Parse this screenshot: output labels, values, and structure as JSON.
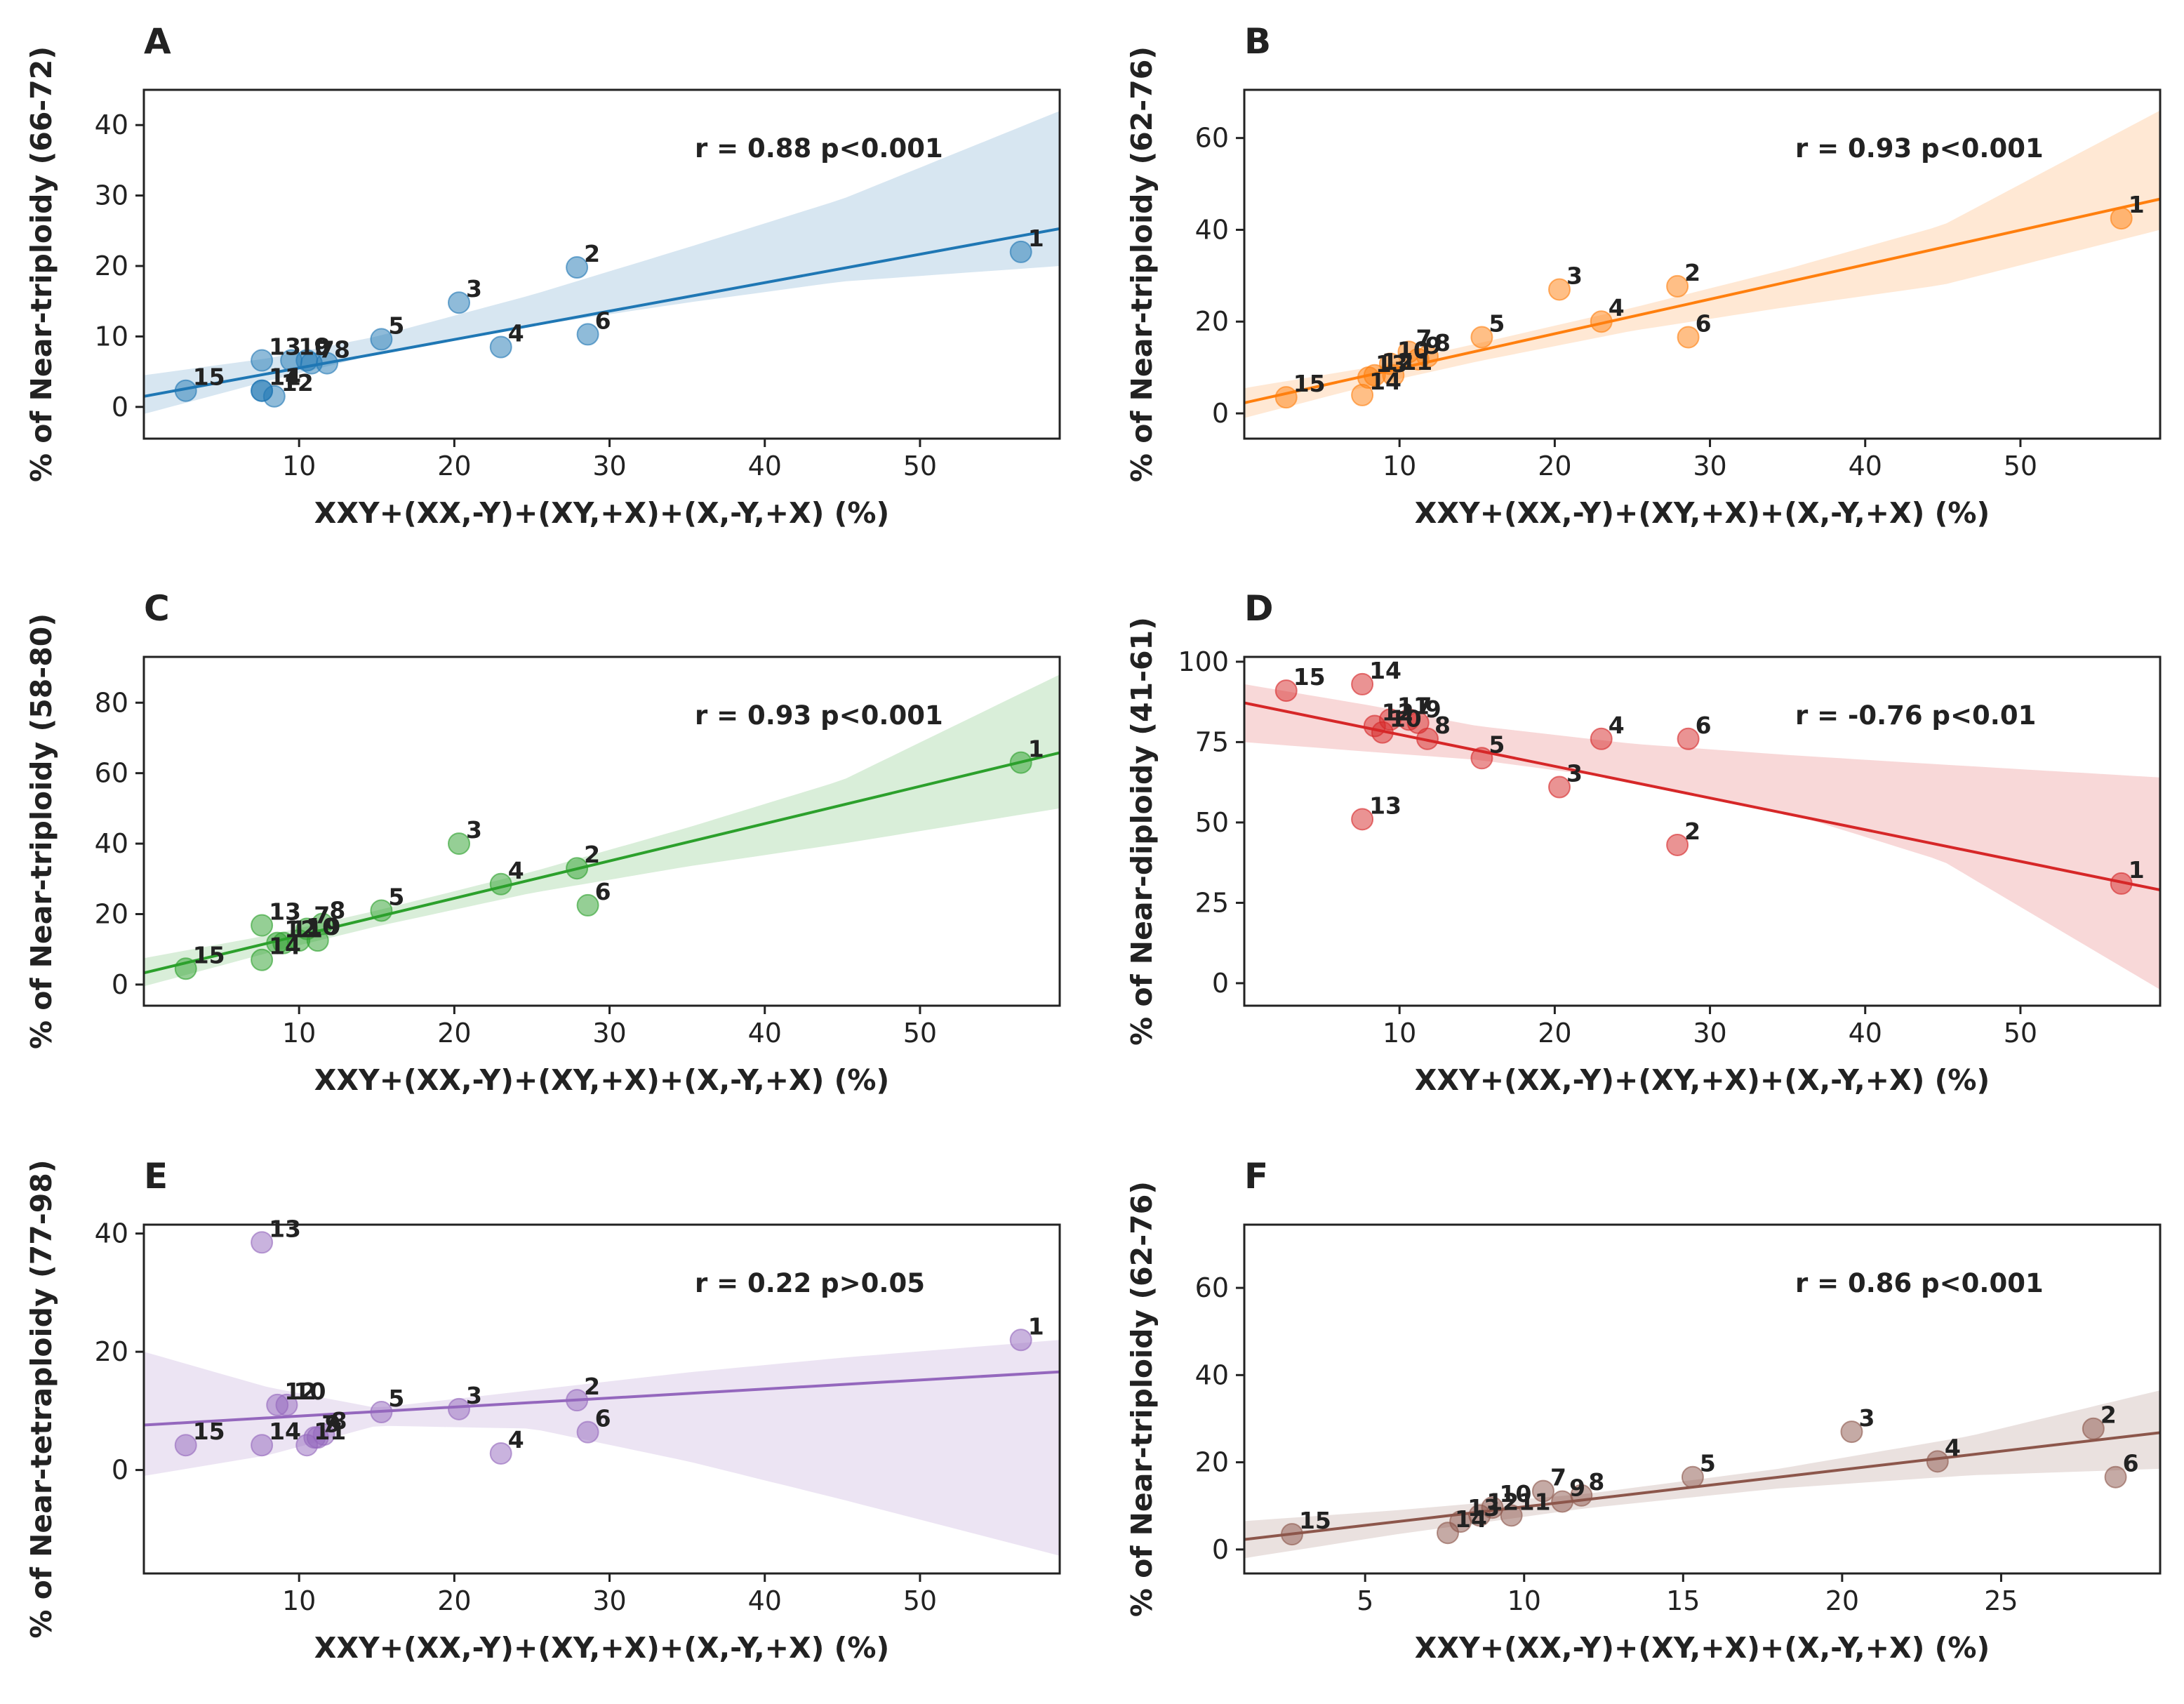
{
  "figure": {
    "x_axis_label": "XXY+(XX,-Y)+(XY,+X)+(X,-Y,+X) (%)"
  },
  "chart_data": [
    {
      "panel": "A",
      "type": "scatter",
      "color": "#1f77b4",
      "ylabel": "% of Near-triploidy (66-72)",
      "xlabel": "XXY+(XX,-Y)+(XY,+X)+(X,-Y,+X) (%)",
      "stat": "r = 0.88 p<0.001",
      "xlim": [
        0,
        59
      ],
      "ylim": [
        -4.5,
        45
      ],
      "xticks": [
        10,
        20,
        30,
        40,
        50
      ],
      "yticks": [
        0,
        10,
        20,
        30,
        40
      ],
      "points": [
        {
          "id": "1",
          "x": 56.5,
          "y": 22
        },
        {
          "id": "2",
          "x": 27.9,
          "y": 19.8
        },
        {
          "id": "3",
          "x": 20.3,
          "y": 14.8
        },
        {
          "id": "4",
          "x": 23.0,
          "y": 8.5
        },
        {
          "id": "5",
          "x": 15.3,
          "y": 9.6
        },
        {
          "id": "6",
          "x": 28.6,
          "y": 10.3
        },
        {
          "id": "7",
          "x": 10.8,
          "y": 6.2
        },
        {
          "id": "8",
          "x": 11.8,
          "y": 6.2
        },
        {
          "id": "9",
          "x": 10.5,
          "y": 6.6
        },
        {
          "id": "10",
          "x": 9.5,
          "y": 6.6
        },
        {
          "id": "11",
          "x": 7.6,
          "y": 2.3
        },
        {
          "id": "12",
          "x": 8.4,
          "y": 1.5
        },
        {
          "id": "13",
          "x": 7.6,
          "y": 6.6
        },
        {
          "id": "14",
          "x": 7.6,
          "y": 2.3
        },
        {
          "id": "15",
          "x": 2.7,
          "y": 2.3
        }
      ],
      "regression": {
        "x": [
          0,
          59
        ],
        "y": [
          1.5,
          25.3
        ]
      },
      "ci_band": {
        "x": [
          0,
          8,
          15,
          25,
          35,
          45,
          59
        ],
        "upper": [
          4.5,
          6.9,
          10.0,
          15.9,
          22.6,
          29.5,
          42.0
        ],
        "lower": [
          -1.0,
          3.7,
          7.5,
          11.5,
          14.8,
          17.8,
          20.0
        ]
      }
    },
    {
      "panel": "B",
      "type": "scatter",
      "color": "#ff7f0e",
      "ylabel": "% of Near-triploidy (62-76)",
      "xlabel": "XXY+(XX,-Y)+(XY,+X)+(X,-Y,+X) (%)",
      "stat": "r = 0.93 p<0.001",
      "xlim": [
        0,
        59
      ],
      "ylim": [
        -5.5,
        70.5
      ],
      "xticks": [
        10,
        20,
        30,
        40,
        50
      ],
      "yticks": [
        0,
        20,
        40,
        60
      ],
      "points": [
        {
          "id": "1",
          "x": 56.5,
          "y": 42.5
        },
        {
          "id": "2",
          "x": 27.9,
          "y": 27.7
        },
        {
          "id": "3",
          "x": 20.3,
          "y": 27.0
        },
        {
          "id": "4",
          "x": 23.0,
          "y": 20.0
        },
        {
          "id": "5",
          "x": 15.3,
          "y": 16.6
        },
        {
          "id": "6",
          "x": 28.6,
          "y": 16.6
        },
        {
          "id": "7",
          "x": 10.6,
          "y": 13.4
        },
        {
          "id": "8",
          "x": 11.8,
          "y": 12.4
        },
        {
          "id": "9",
          "x": 11.2,
          "y": 11.8
        },
        {
          "id": "10",
          "x": 9.4,
          "y": 10.8
        },
        {
          "id": "11",
          "x": 9.6,
          "y": 8.3
        },
        {
          "id": "12",
          "x": 8.4,
          "y": 8.3
        },
        {
          "id": "13",
          "x": 8.0,
          "y": 7.8
        },
        {
          "id": "14",
          "x": 7.6,
          "y": 4.0
        },
        {
          "id": "15",
          "x": 2.7,
          "y": 3.5
        }
      ],
      "regression": {
        "x": [
          0,
          59
        ],
        "y": [
          2.3,
          46.7
        ]
      },
      "ci_band": {
        "x": [
          0,
          8,
          15,
          25,
          35,
          45,
          59
        ],
        "upper": [
          5.5,
          10.0,
          15.2,
          23.0,
          31.5,
          41.0,
          66.0
        ],
        "lower": [
          -1.0,
          6.0,
          11.3,
          18.0,
          23.2,
          28.0,
          40.0
        ]
      }
    },
    {
      "panel": "C",
      "type": "scatter",
      "color": "#2ca02c",
      "ylabel": "% of Near-triploidy (58-80)",
      "xlabel": "XXY+(XX,-Y)+(XY,+X)+(X,-Y,+X) (%)",
      "stat": "r = 0.93 p<0.001",
      "xlim": [
        0,
        59
      ],
      "ylim": [
        -6,
        93
      ],
      "xticks": [
        10,
        20,
        30,
        40,
        50
      ],
      "yticks": [
        0,
        20,
        40,
        60,
        80
      ],
      "points": [
        {
          "id": "1",
          "x": 56.5,
          "y": 63
        },
        {
          "id": "2",
          "x": 27.9,
          "y": 33
        },
        {
          "id": "3",
          "x": 20.3,
          "y": 40
        },
        {
          "id": "4",
          "x": 23.0,
          "y": 28.5
        },
        {
          "id": "5",
          "x": 15.3,
          "y": 21
        },
        {
          "id": "6",
          "x": 28.6,
          "y": 22.5
        },
        {
          "id": "7",
          "x": 10.5,
          "y": 15.8
        },
        {
          "id": "8",
          "x": 11.5,
          "y": 17.2
        },
        {
          "id": "9",
          "x": 11.2,
          "y": 12.5
        },
        {
          "id": "10",
          "x": 10.0,
          "y": 12.5
        },
        {
          "id": "11",
          "x": 9.0,
          "y": 11.8
        },
        {
          "id": "12",
          "x": 8.6,
          "y": 11.8
        },
        {
          "id": "13",
          "x": 7.6,
          "y": 16.8
        },
        {
          "id": "14",
          "x": 7.6,
          "y": 7.0
        },
        {
          "id": "15",
          "x": 2.7,
          "y": 4.5
        }
      ],
      "regression": {
        "x": [
          0,
          59
        ],
        "y": [
          3.3,
          65.8
        ]
      },
      "ci_band": {
        "x": [
          0,
          8,
          15,
          25,
          35,
          45,
          59
        ],
        "upper": [
          7.5,
          14.0,
          21.0,
          32.0,
          44.5,
          58.0,
          88.0
        ],
        "lower": [
          -0.5,
          9.0,
          16.5,
          26.0,
          33.5,
          40.0,
          50.0
        ]
      }
    },
    {
      "panel": "D",
      "type": "scatter",
      "color": "#d62728",
      "ylabel": "% of Near-diploidy (41-61)",
      "xlabel": "XXY+(XX,-Y)+(XY,+X)+(X,-Y,+X) (%)",
      "stat": "r = -0.76 p<0.01",
      "xlim": [
        0,
        59
      ],
      "ylim": [
        -7,
        101.5
      ],
      "xticks": [
        10,
        20,
        30,
        40,
        50
      ],
      "yticks": [
        0,
        25,
        50,
        75,
        100
      ],
      "points": [
        {
          "id": "1",
          "x": 56.5,
          "y": 31
        },
        {
          "id": "2",
          "x": 27.9,
          "y": 43
        },
        {
          "id": "3",
          "x": 20.3,
          "y": 61
        },
        {
          "id": "4",
          "x": 23.0,
          "y": 76
        },
        {
          "id": "5",
          "x": 15.3,
          "y": 70
        },
        {
          "id": "6",
          "x": 28.6,
          "y": 76
        },
        {
          "id": "7",
          "x": 10.6,
          "y": 82
        },
        {
          "id": "8",
          "x": 11.8,
          "y": 76
        },
        {
          "id": "9",
          "x": 11.2,
          "y": 81
        },
        {
          "id": "10",
          "x": 8.9,
          "y": 78
        },
        {
          "id": "11",
          "x": 9.4,
          "y": 82
        },
        {
          "id": "12",
          "x": 8.4,
          "y": 80
        },
        {
          "id": "13",
          "x": 7.6,
          "y": 51
        },
        {
          "id": "14",
          "x": 7.6,
          "y": 93
        },
        {
          "id": "15",
          "x": 2.7,
          "y": 91
        }
      ],
      "regression": {
        "x": [
          0,
          59
        ],
        "y": [
          87.2,
          29.0
        ]
      },
      "ci_band": {
        "x": [
          0,
          8,
          15,
          25,
          35,
          45,
          59
        ],
        "upper": [
          93.0,
          86.5,
          80.0,
          74.5,
          71.0,
          68.0,
          64.0
        ],
        "lower": [
          75.0,
          72.0,
          69.5,
          63.0,
          53.0,
          38.0,
          -2.0
        ]
      }
    },
    {
      "panel": "E",
      "type": "scatter",
      "color": "#9467bd",
      "ylabel": "% of Near-tetraploidy (77-98)",
      "xlabel": "XXY+(XX,-Y)+(XY,+X)+(X,-Y,+X) (%)",
      "stat": "r = 0.22 p>0.05",
      "xlim": [
        0,
        59
      ],
      "ylim": [
        -17.5,
        41.5
      ],
      "xticks": [
        10,
        20,
        30,
        40,
        50
      ],
      "yticks": [
        0,
        20,
        40
      ],
      "points": [
        {
          "id": "1",
          "x": 56.5,
          "y": 22
        },
        {
          "id": "2",
          "x": 27.9,
          "y": 11.8
        },
        {
          "id": "3",
          "x": 20.3,
          "y": 10.3
        },
        {
          "id": "4",
          "x": 23.0,
          "y": 2.8
        },
        {
          "id": "5",
          "x": 15.3,
          "y": 9.8
        },
        {
          "id": "6",
          "x": 28.6,
          "y": 6.4
        },
        {
          "id": "7",
          "x": 11.0,
          "y": 5.5
        },
        {
          "id": "8",
          "x": 11.6,
          "y": 6.0
        },
        {
          "id": "9",
          "x": 11.2,
          "y": 5.5
        },
        {
          "id": "10",
          "x": 9.2,
          "y": 11.0
        },
        {
          "id": "11",
          "x": 10.5,
          "y": 4.2
        },
        {
          "id": "12",
          "x": 8.6,
          "y": 11.0
        },
        {
          "id": "13",
          "x": 7.6,
          "y": 38.5
        },
        {
          "id": "14",
          "x": 7.6,
          "y": 4.2
        },
        {
          "id": "15",
          "x": 2.7,
          "y": 4.2
        }
      ],
      "regression": {
        "x": [
          0,
          59
        ],
        "y": [
          7.6,
          16.6
        ]
      },
      "ci_band": {
        "x": [
          0,
          8,
          15,
          25,
          35,
          45,
          59
        ],
        "upper": [
          20.0,
          14.0,
          10.5,
          13.5,
          16.5,
          19.0,
          22.0
        ],
        "lower": [
          -1.0,
          2.5,
          7.5,
          7.0,
          1.5,
          -5.0,
          -14.5
        ]
      }
    },
    {
      "panel": "F",
      "type": "scatter",
      "color": "#8c564b",
      "ylabel": "% of Near-triploidy (62-76)",
      "xlabel": "XXY+(XX,-Y)+(XY,+X)+(X,-Y,+X) (%)",
      "stat": "r = 0.86 p<0.001",
      "xlim": [
        1.2,
        30.0
      ],
      "ylim": [
        -5.5,
        74.5
      ],
      "xticks": [
        5,
        10,
        15,
        20,
        25
      ],
      "yticks": [
        0,
        20,
        40,
        60
      ],
      "points": [
        {
          "id": "2",
          "x": 27.9,
          "y": 27.7
        },
        {
          "id": "3",
          "x": 20.3,
          "y": 27.0
        },
        {
          "id": "4",
          "x": 23.0,
          "y": 20.2
        },
        {
          "id": "5",
          "x": 15.3,
          "y": 16.6
        },
        {
          "id": "6",
          "x": 28.6,
          "y": 16.6
        },
        {
          "id": "7",
          "x": 10.6,
          "y": 13.4
        },
        {
          "id": "8",
          "x": 11.8,
          "y": 12.4
        },
        {
          "id": "9",
          "x": 11.2,
          "y": 11.0
        },
        {
          "id": "10",
          "x": 9.0,
          "y": 9.6
        },
        {
          "id": "11",
          "x": 9.6,
          "y": 7.8
        },
        {
          "id": "12",
          "x": 8.6,
          "y": 7.8
        },
        {
          "id": "13",
          "x": 8.0,
          "y": 6.4
        },
        {
          "id": "14",
          "x": 7.6,
          "y": 3.8
        },
        {
          "id": "15",
          "x": 2.7,
          "y": 3.5
        }
      ],
      "regression": {
        "x": [
          1.2,
          30.0
        ],
        "y": [
          2.3,
          26.8
        ]
      },
      "ci_band": {
        "x": [
          1.2,
          6,
          12,
          18,
          24,
          30.0
        ],
        "upper": [
          6.5,
          9.0,
          12.8,
          18.5,
          26.0,
          36.5
        ],
        "lower": [
          -2.0,
          3.5,
          9.5,
          14.0,
          17.0,
          18.5
        ]
      }
    }
  ]
}
